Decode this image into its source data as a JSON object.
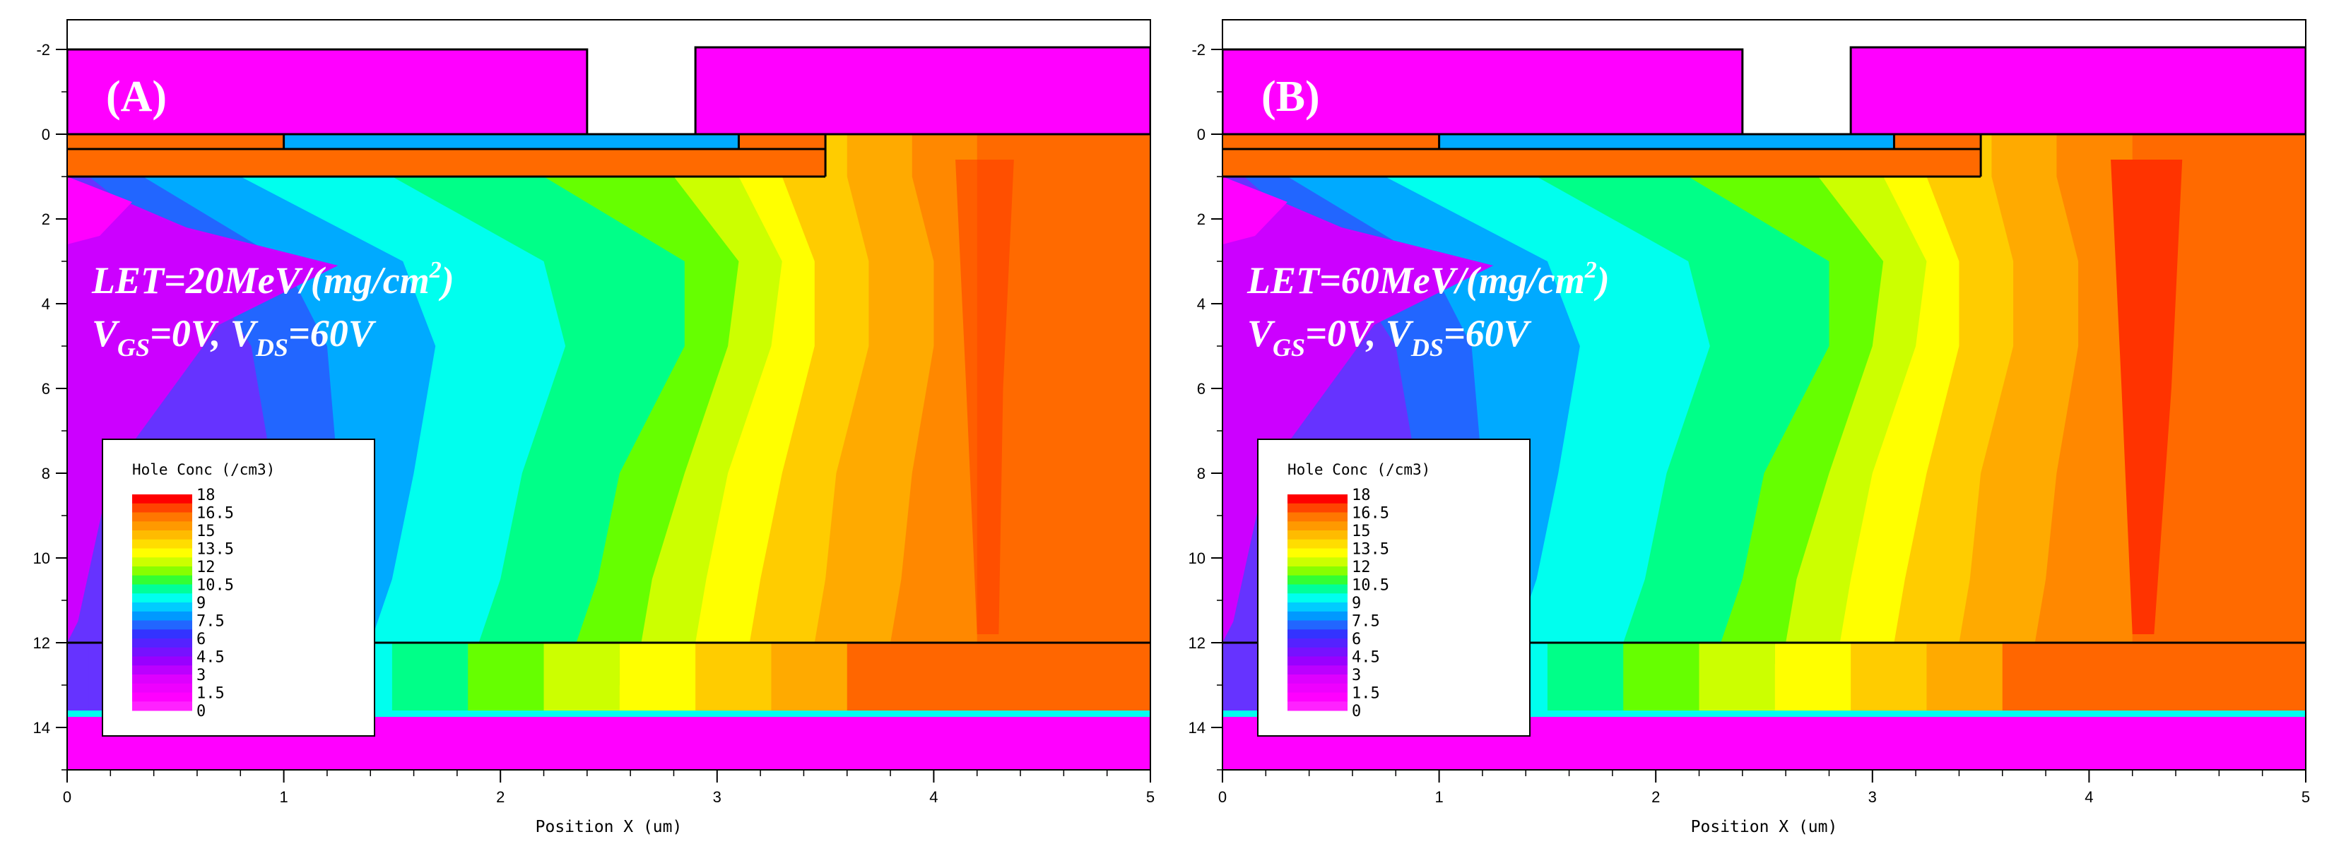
{
  "chart_data": [
    {
      "type": "heatmap",
      "panel_label": "(A)",
      "annotation": {
        "let": "LET=20MeV/(mg/cm",
        "let_sup": "2",
        "let_close": ")",
        "v_g": "V",
        "v_g_sub": "GS",
        "v_g_rest": "=0V, ",
        "v_d": "V",
        "v_d_sub": "DS",
        "v_d_rest": "=60V"
      },
      "xlabel": "Position X (um)",
      "ylabel": "",
      "xlim": [
        0,
        5
      ],
      "ylim": [
        -2.7,
        15
      ],
      "x_ticks": [
        "0",
        "1",
        "2",
        "3",
        "4",
        "5"
      ],
      "y_ticks": [
        "-2",
        "0",
        "2",
        "4",
        "6",
        "8",
        "10",
        "12",
        "14"
      ],
      "legend_title": "Hole Conc (/cm3)",
      "legend_levels": [
        "18",
        "16.5",
        "15",
        "13.5",
        "12",
        "10.5",
        "9",
        "7.5",
        "6",
        "4.5",
        "3",
        "1.5",
        "0"
      ],
      "contour_fronts": [
        [
          0.1,
          0.6,
          0.85,
          0.95,
          0.9,
          0.8,
          0.7
        ],
        [
          0.35,
          1.0,
          1.2,
          1.25,
          1.2,
          1.1,
          0.95
        ],
        [
          0.8,
          1.55,
          1.7,
          1.6,
          1.5,
          1.4,
          1.2
        ],
        [
          1.5,
          2.2,
          2.3,
          2.1,
          2.0,
          1.9,
          1.7
        ],
        [
          2.2,
          2.85,
          2.85,
          2.55,
          2.45,
          2.35,
          2.15
        ],
        [
          2.8,
          3.1,
          3.05,
          2.85,
          2.7,
          2.65,
          2.5
        ],
        [
          3.1,
          3.3,
          3.25,
          3.05,
          2.95,
          2.9,
          2.8
        ],
        [
          3.3,
          3.45,
          3.45,
          3.3,
          3.2,
          3.15,
          3.1
        ],
        [
          3.6,
          3.7,
          3.7,
          3.55,
          3.5,
          3.45,
          3.4
        ],
        [
          3.9,
          4.0,
          4.0,
          3.9,
          3.85,
          3.8,
          3.75
        ],
        [
          4.2,
          4.2,
          4.2,
          4.2,
          4.2,
          4.2,
          4.2
        ]
      ]
    },
    {
      "type": "heatmap",
      "panel_label": "(B)",
      "annotation": {
        "let": "LET=60MeV/(mg/cm",
        "let_sup": "2",
        "let_close": ")",
        "v_g": "V",
        "v_g_sub": "GS",
        "v_g_rest": "=0V, ",
        "v_d": "V",
        "v_d_sub": "DS",
        "v_d_rest": "=60V"
      },
      "xlabel": "Position X (um)",
      "ylabel": "",
      "xlim": [
        0,
        5
      ],
      "ylim": [
        -2.7,
        15
      ],
      "x_ticks": [
        "0",
        "1",
        "2",
        "3",
        "4",
        "5"
      ],
      "y_ticks": [
        "-2",
        "0",
        "2",
        "4",
        "6",
        "8",
        "10",
        "12",
        "14"
      ],
      "legend_title": "Hole Conc (/cm3)",
      "legend_levels": [
        "18",
        "16.5",
        "15",
        "13.5",
        "12",
        "10.5",
        "9",
        "7.5",
        "6",
        "4.5",
        "3",
        "1.5",
        "0"
      ],
      "contour_fronts": [
        [
          0.1,
          0.55,
          0.8,
          0.9,
          0.85,
          0.75,
          0.65
        ],
        [
          0.3,
          0.95,
          1.15,
          1.2,
          1.15,
          1.05,
          0.9
        ],
        [
          0.75,
          1.5,
          1.65,
          1.55,
          1.45,
          1.35,
          1.15
        ],
        [
          1.45,
          2.15,
          2.25,
          2.05,
          1.95,
          1.85,
          1.65
        ],
        [
          2.15,
          2.8,
          2.8,
          2.5,
          2.4,
          2.3,
          2.1
        ],
        [
          2.75,
          3.05,
          3.0,
          2.8,
          2.65,
          2.6,
          2.45
        ],
        [
          3.05,
          3.25,
          3.2,
          3.0,
          2.9,
          2.85,
          2.75
        ],
        [
          3.25,
          3.4,
          3.4,
          3.25,
          3.15,
          3.1,
          3.05
        ],
        [
          3.55,
          3.65,
          3.65,
          3.5,
          3.45,
          3.4,
          3.35
        ],
        [
          3.85,
          3.95,
          3.95,
          3.85,
          3.8,
          3.75,
          3.7
        ],
        [
          4.2,
          4.2,
          4.2,
          4.2,
          4.2,
          4.2,
          4.2
        ]
      ]
    }
  ],
  "colors": {
    "pink": "#ff00ff",
    "contour_palette": [
      "#cc00ff",
      "#6633ff",
      "#2266ff",
      "#00aaff",
      "#00ffee",
      "#00ff88",
      "#66ff00",
      "#ccff00",
      "#ffff00",
      "#ffcc00",
      "#ffaa00",
      "#ff8800"
    ],
    "deep_orange": "#ff6a00",
    "red_core": "#ff3300",
    "hole_region": "#ff6600"
  }
}
